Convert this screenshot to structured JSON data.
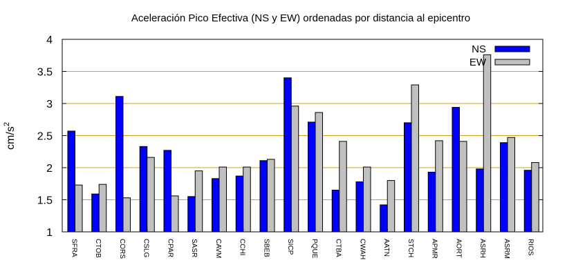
{
  "chart_data": {
    "type": "bar",
    "title": "Aceleración Pico Efectiva (NS y EW) ordenadas por distancia al epicentro",
    "xlabel": "",
    "ylabel": "cm/s",
    "ylabel_superscript": "2",
    "ylim": [
      1,
      4
    ],
    "yticks": [
      "1",
      "1.5",
      "2",
      "2.5",
      "3",
      "3.5",
      "4"
    ],
    "grid": "horizontal",
    "legend_position": "top-right",
    "categories": [
      "SFRA",
      "CTOB",
      "CORS",
      "CSLG",
      "CPAR",
      "SASR",
      "CAVM",
      "CCHI",
      "SBEB",
      "SICP",
      "PQUE",
      "CTBA",
      "CWAH",
      "AATN",
      "STCH",
      "APMR",
      "AORT",
      "ASRH",
      "ASRM",
      "RIOS"
    ],
    "series": [
      {
        "name": "NS",
        "color": "#0000ff",
        "values": [
          2.57,
          1.59,
          3.11,
          2.33,
          2.27,
          1.55,
          1.83,
          1.87,
          2.11,
          3.4,
          2.71,
          1.65,
          1.78,
          1.42,
          2.7,
          1.93,
          2.94,
          1.98,
          2.39,
          1.96
        ]
      },
      {
        "name": "EW",
        "color": "#c0c0c0",
        "values": [
          1.73,
          1.74,
          1.53,
          2.16,
          1.56,
          1.95,
          2.01,
          2.01,
          2.13,
          2.96,
          2.86,
          2.41,
          2.01,
          1.8,
          3.29,
          2.42,
          2.41,
          3.76,
          2.47,
          2.08
        ]
      }
    ]
  }
}
